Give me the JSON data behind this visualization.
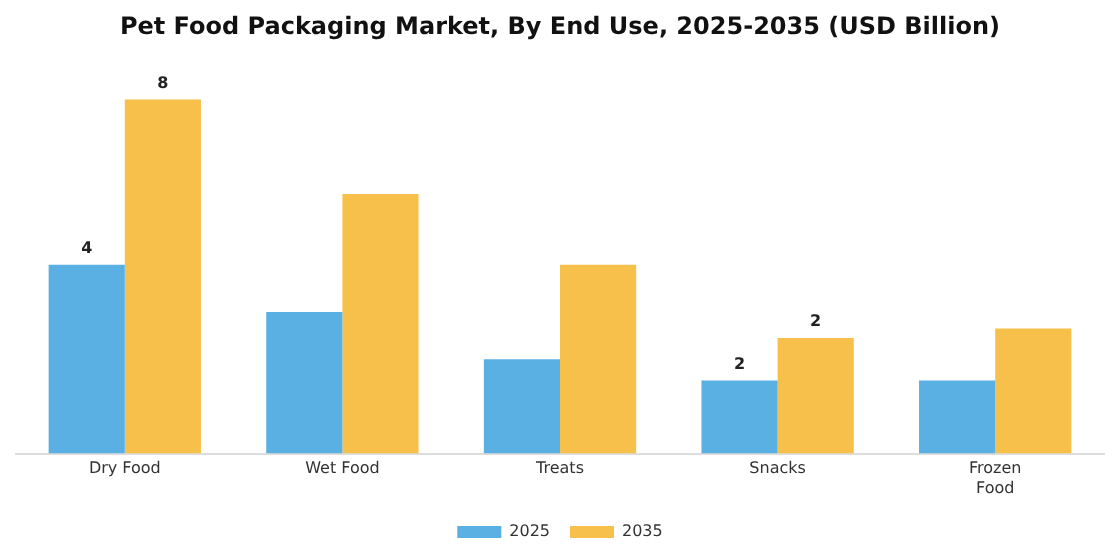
{
  "chart_data": {
    "type": "bar",
    "title": "Pet Food Packaging Market, By End Use, 2025-2035 (USD Billion)",
    "categories": [
      "Dry Food",
      "Wet Food",
      "Treats",
      "Snacks",
      "Frozen Food"
    ],
    "series": [
      {
        "name": "2025",
        "color": "#5ab0e3",
        "values": [
          4.0,
          3.0,
          2.0,
          1.55,
          1.55
        ],
        "value_labels": [
          "4",
          null,
          null,
          "2",
          null
        ]
      },
      {
        "name": "2035",
        "color": "#f7c04a",
        "values": [
          7.5,
          5.5,
          4.0,
          2.45,
          2.65
        ],
        "value_labels": [
          "8",
          null,
          null,
          "2",
          null
        ]
      }
    ],
    "tick_labels": "x",
    "grid": false,
    "legend": "bottom"
  }
}
